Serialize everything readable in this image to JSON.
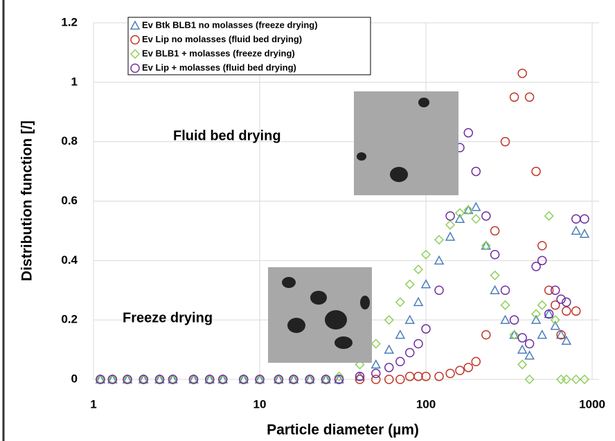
{
  "chart_data": {
    "type": "scatter",
    "xlabel": "Particle diameter (µm)",
    "ylabel": "Distribution function [/]",
    "log_x": true,
    "grid": true,
    "legend_loc": "upper left",
    "xlim": [
      1,
      1000
    ],
    "ylim": [
      0,
      1.2
    ],
    "xticks": [
      1,
      10,
      100,
      1000
    ],
    "yticks": [
      0,
      0.2,
      0.4,
      0.6,
      0.8,
      1,
      1.2
    ],
    "annotations": [
      "Fluid bed drying",
      "Freeze drying"
    ],
    "x": [
      1.1,
      1.3,
      1.6,
      2,
      2.5,
      3,
      4,
      5,
      6,
      8,
      10,
      13,
      16,
      20,
      25,
      30,
      40,
      50,
      60,
      70,
      80,
      90,
      100,
      120,
      140,
      160,
      180,
      200,
      230,
      260,
      300,
      340,
      380,
      420,
      460,
      500,
      550,
      600,
      650,
      700,
      800,
      900
    ],
    "series": [
      {
        "name": "Ev Btk BLB1 no molasses (freeze drying)",
        "color": "#4a7ebb",
        "marker": "triangle",
        "values": [
          0,
          0,
          0,
          0,
          0,
          0,
          0,
          0,
          0,
          0,
          0,
          0,
          0,
          0,
          0,
          0,
          0.01,
          0.05,
          0.1,
          0.15,
          0.2,
          0.26,
          0.32,
          0.4,
          0.48,
          0.54,
          0.57,
          0.58,
          0.45,
          0.3,
          0.2,
          0.15,
          0.1,
          0.08,
          0.2,
          0.15,
          0.22,
          0.18,
          0.15,
          0.13,
          0.5,
          0.49
        ]
      },
      {
        "name": "Ev Lip no molasses (fluid bed drying)",
        "color": "#c0392b",
        "marker": "circle",
        "values": [
          0,
          0,
          0,
          0,
          0,
          0,
          0,
          0,
          0,
          0,
          0,
          0,
          0,
          0,
          0,
          0,
          0,
          0,
          0,
          0,
          0.01,
          0.01,
          0.01,
          0.01,
          0.02,
          0.03,
          0.04,
          0.06,
          0.15,
          0.5,
          0.8,
          0.95,
          1.03,
          0.95,
          0.7,
          0.45,
          0.3,
          0.25,
          0.15,
          0.23,
          0.23,
          null
        ]
      },
      {
        "name": "Ev BLB1 + molasses (freeze drying)",
        "color": "#8fce5a",
        "marker": "diamond",
        "values": [
          0,
          0,
          0,
          0,
          0,
          0,
          0,
          0,
          0,
          0,
          0,
          0,
          0,
          0,
          0,
          0.01,
          0.05,
          0.12,
          0.2,
          0.26,
          0.32,
          0.37,
          0.42,
          0.47,
          0.52,
          0.56,
          0.57,
          0.54,
          0.45,
          0.35,
          0.25,
          0.15,
          0.05,
          0,
          0.22,
          0.25,
          0.55,
          0.2,
          0,
          0,
          0,
          0
        ]
      },
      {
        "name": "Ev Lip + molasses (fluid bed drying)",
        "color": "#7030a0",
        "marker": "circle",
        "values": [
          0,
          0,
          0,
          0,
          0,
          0,
          0,
          0,
          0,
          0,
          0,
          0,
          0,
          0,
          0,
          0,
          0.01,
          0.02,
          0.04,
          0.06,
          0.09,
          0.12,
          0.17,
          0.3,
          0.55,
          0.78,
          0.83,
          0.7,
          0.55,
          0.42,
          0.3,
          0.2,
          0.14,
          0.12,
          0.38,
          0.4,
          0.22,
          0.3,
          0.27,
          0.26,
          0.54,
          0.54
        ]
      }
    ]
  }
}
